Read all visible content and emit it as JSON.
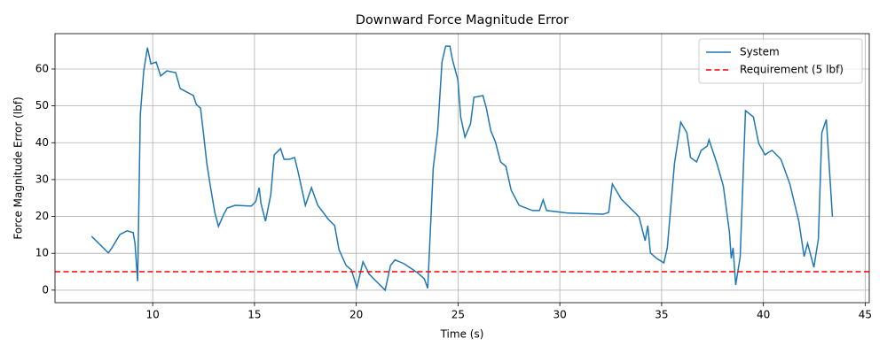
{
  "chart_data": {
    "type": "line",
    "title": "Downward Force Magnitude Error",
    "x_label": "Time (s)",
    "y_label": "Force Magnitude Error (lbf)",
    "xlim": [
      5.2,
      45.2
    ],
    "ylim": [
      -3.4,
      69.6
    ],
    "xticks": [
      10,
      15,
      20,
      25,
      30,
      35,
      40,
      45
    ],
    "yticks": [
      0,
      10,
      20,
      30,
      40,
      50,
      60
    ],
    "grid": true,
    "legend": "upper right",
    "series": [
      {
        "name": "System",
        "color": "#1f77b4",
        "x": [
          7.0,
          7.82,
          8.0,
          8.39,
          8.74,
          9.04,
          9.13,
          9.26,
          9.39,
          9.56,
          9.74,
          9.91,
          10.17,
          10.39,
          10.7,
          11.13,
          11.35,
          11.66,
          12.0,
          12.14,
          12.35,
          12.48,
          12.66,
          12.83,
          13.05,
          13.23,
          13.49,
          13.66,
          14.05,
          14.84,
          15.06,
          15.23,
          15.32,
          15.54,
          15.8,
          15.97,
          16.28,
          16.45,
          16.71,
          16.97,
          17.15,
          17.5,
          17.8,
          18.11,
          18.63,
          18.94,
          19.15,
          19.5,
          19.76,
          20.03,
          20.33,
          20.64,
          20.98,
          21.42,
          21.68,
          21.9,
          22.34,
          22.99,
          23.34,
          23.51,
          23.78,
          24.0,
          24.21,
          24.39,
          24.6,
          24.73,
          24.99,
          25.13,
          25.34,
          25.61,
          25.78,
          26.22,
          26.39,
          26.61,
          26.83,
          27.09,
          27.35,
          27.61,
          28.0,
          28.66,
          29.0,
          29.18,
          29.35,
          30.4,
          32.14,
          32.4,
          32.58,
          33.02,
          33.89,
          34.19,
          34.32,
          34.45,
          34.76,
          35.11,
          35.28,
          35.63,
          35.94,
          36.24,
          36.42,
          36.72,
          36.94,
          37.24,
          37.33,
          37.72,
          38.03,
          38.33,
          38.42,
          38.51,
          38.64,
          38.86,
          39.12,
          39.51,
          39.77,
          40.08,
          40.25,
          40.43,
          40.86,
          41.3,
          41.74,
          42.0,
          42.17,
          42.48,
          42.7,
          42.87,
          43.09,
          43.39
        ],
        "values": [
          14.6,
          10.1,
          11.5,
          15.1,
          16.1,
          15.6,
          12.7,
          2.4,
          47.5,
          59.5,
          65.8,
          61.4,
          61.9,
          58.1,
          59.5,
          59.0,
          54.7,
          53.8,
          52.8,
          50.4,
          49.4,
          43.2,
          34.3,
          28.3,
          21.1,
          17.3,
          20.6,
          22.3,
          23.0,
          22.8,
          24.0,
          27.8,
          23.5,
          18.7,
          25.9,
          36.7,
          38.4,
          35.5,
          35.5,
          36.0,
          31.9,
          23.0,
          27.8,
          23.0,
          19.2,
          17.5,
          11.0,
          6.7,
          5.5,
          0.7,
          7.7,
          4.3,
          2.4,
          0.0,
          6.7,
          8.2,
          7.2,
          4.8,
          3.1,
          0.5,
          33.1,
          43.2,
          61.9,
          66.2,
          66.2,
          62.4,
          57.1,
          47.0,
          41.5,
          45.1,
          52.3,
          52.8,
          49.4,
          43.2,
          40.3,
          34.8,
          33.6,
          27.1,
          23.0,
          21.6,
          21.6,
          24.5,
          21.6,
          20.9,
          20.6,
          21.1,
          28.8,
          24.7,
          19.9,
          13.4,
          17.5,
          10.1,
          8.6,
          7.4,
          11.5,
          34.3,
          45.6,
          42.7,
          36.0,
          34.8,
          37.9,
          39.1,
          40.8,
          34.3,
          28.3,
          15.8,
          8.6,
          11.5,
          1.4,
          9.1,
          48.7,
          47.0,
          39.8,
          36.7,
          37.4,
          37.9,
          35.5,
          28.8,
          18.7,
          9.1,
          12.7,
          6.2,
          13.9,
          42.7,
          46.3,
          19.9
        ]
      }
    ],
    "reference_line": {
      "name": "Requirement (5 lbf)",
      "value": 5,
      "color": "#ff0000"
    }
  }
}
